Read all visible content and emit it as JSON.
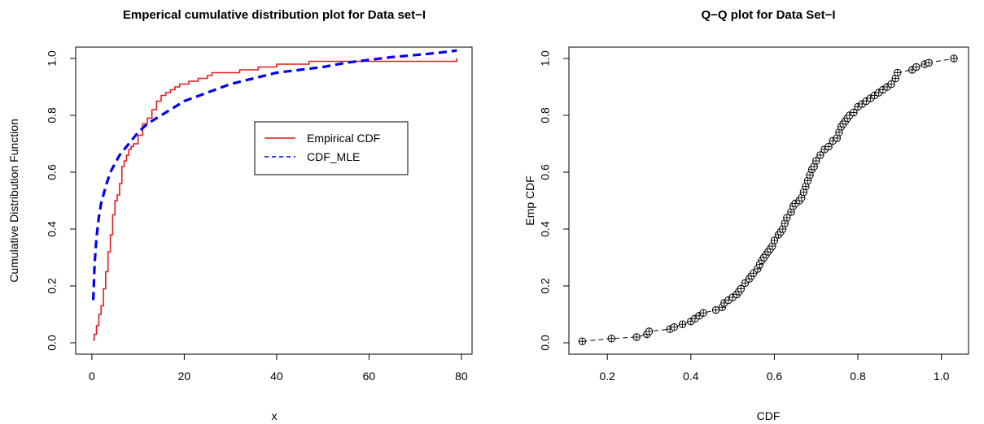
{
  "chart_data": [
    {
      "type": "line",
      "title": "Emperical cumulative distribution plot for Data set−I",
      "xlabel": "x",
      "ylabel": "Cumulative Distribution Function",
      "xlim": [
        0,
        80
      ],
      "ylim": [
        0,
        1.0
      ],
      "xticks": [
        "0",
        "20",
        "40",
        "60",
        "80"
      ],
      "yticks": [
        "0.0",
        "0.2",
        "0.4",
        "0.6",
        "0.8",
        "1.0"
      ],
      "grid": false,
      "legend_position": "right-center",
      "colors": {
        "empirical": "#e41a1c",
        "mle": "#0000ee"
      },
      "series": [
        {
          "name": "Empirical CDF",
          "style": "solid-step",
          "x": [
            0.2,
            0.5,
            1,
            1.5,
            2,
            2.5,
            3,
            3.5,
            4,
            4.5,
            5,
            5.5,
            6,
            6.5,
            7,
            7.5,
            8,
            8.5,
            9,
            10,
            11,
            12,
            13,
            14,
            15,
            16,
            17,
            18,
            19,
            20,
            21,
            22,
            23,
            24,
            25,
            26,
            28,
            30,
            32,
            34,
            36,
            38,
            40,
            44,
            47,
            50,
            55,
            60,
            65,
            70,
            79
          ],
          "y": [
            0.01,
            0.03,
            0.06,
            0.1,
            0.13,
            0.19,
            0.25,
            0.32,
            0.38,
            0.45,
            0.5,
            0.52,
            0.56,
            0.62,
            0.64,
            0.66,
            0.68,
            0.69,
            0.7,
            0.73,
            0.77,
            0.79,
            0.82,
            0.85,
            0.87,
            0.88,
            0.89,
            0.9,
            0.91,
            0.91,
            0.92,
            0.92,
            0.93,
            0.93,
            0.94,
            0.95,
            0.95,
            0.95,
            0.96,
            0.96,
            0.97,
            0.97,
            0.98,
            0.98,
            0.99,
            0.99,
            0.99,
            0.99,
            0.99,
            0.99,
            1.0
          ]
        },
        {
          "name": "CDF_MLE",
          "style": "dashed",
          "x": [
            0.3,
            0.6,
            1,
            1.5,
            2,
            3,
            4,
            5,
            6,
            7,
            8,
            10,
            12,
            15,
            18,
            20,
            25,
            30,
            35,
            40,
            45,
            50,
            55,
            60,
            65,
            70,
            75,
            79
          ],
          "y": [
            0.15,
            0.28,
            0.37,
            0.44,
            0.49,
            0.55,
            0.6,
            0.63,
            0.66,
            0.68,
            0.7,
            0.74,
            0.77,
            0.8,
            0.83,
            0.85,
            0.88,
            0.91,
            0.93,
            0.95,
            0.96,
            0.97,
            0.985,
            0.995,
            1.005,
            1.012,
            1.02,
            1.028
          ]
        }
      ]
    },
    {
      "type": "scatter",
      "title": "Q−Q plot for Data Set−I",
      "xlabel": "CDF",
      "ylabel": "Emp CDF",
      "xlim": [
        0.1,
        1.05
      ],
      "ylim": [
        0,
        1.0
      ],
      "xticks": [
        "0.2",
        "0.4",
        "0.6",
        "0.8",
        "1.0"
      ],
      "yticks": [
        "0.0",
        "0.2",
        "0.4",
        "0.6",
        "0.8",
        "1.0"
      ],
      "grid": false,
      "marker": "circle-plus",
      "line": "dashed",
      "series": [
        {
          "x": [
            0.14,
            0.21,
            0.27,
            0.295,
            0.3,
            0.35,
            0.36,
            0.38,
            0.4,
            0.41,
            0.42,
            0.43,
            0.46,
            0.475,
            0.48,
            0.49,
            0.5,
            0.51,
            0.515,
            0.52,
            0.53,
            0.54,
            0.545,
            0.55,
            0.56,
            0.565,
            0.57,
            0.575,
            0.58,
            0.585,
            0.59,
            0.595,
            0.6,
            0.61,
            0.615,
            0.62,
            0.625,
            0.63,
            0.64,
            0.645,
            0.65,
            0.66,
            0.665,
            0.67,
            0.675,
            0.68,
            0.685,
            0.69,
            0.695,
            0.7,
            0.71,
            0.72,
            0.73,
            0.74,
            0.75,
            0.755,
            0.76,
            0.765,
            0.77,
            0.775,
            0.78,
            0.79,
            0.8,
            0.81,
            0.82,
            0.83,
            0.84,
            0.85,
            0.86,
            0.87,
            0.88,
            0.89,
            0.895,
            0.93,
            0.94,
            0.96,
            0.97,
            1.03
          ],
          "y": [
            0.005,
            0.015,
            0.02,
            0.03,
            0.04,
            0.048,
            0.055,
            0.065,
            0.075,
            0.085,
            0.095,
            0.105,
            0.115,
            0.125,
            0.14,
            0.15,
            0.16,
            0.17,
            0.18,
            0.19,
            0.21,
            0.225,
            0.235,
            0.245,
            0.26,
            0.275,
            0.29,
            0.3,
            0.31,
            0.32,
            0.33,
            0.34,
            0.36,
            0.38,
            0.39,
            0.4,
            0.42,
            0.44,
            0.46,
            0.48,
            0.49,
            0.5,
            0.51,
            0.53,
            0.55,
            0.57,
            0.59,
            0.61,
            0.62,
            0.64,
            0.66,
            0.68,
            0.69,
            0.71,
            0.72,
            0.74,
            0.76,
            0.77,
            0.78,
            0.79,
            0.8,
            0.81,
            0.83,
            0.84,
            0.85,
            0.86,
            0.87,
            0.88,
            0.89,
            0.9,
            0.91,
            0.93,
            0.95,
            0.96,
            0.97,
            0.98,
            0.985,
            1.0
          ]
        }
      ]
    }
  ]
}
